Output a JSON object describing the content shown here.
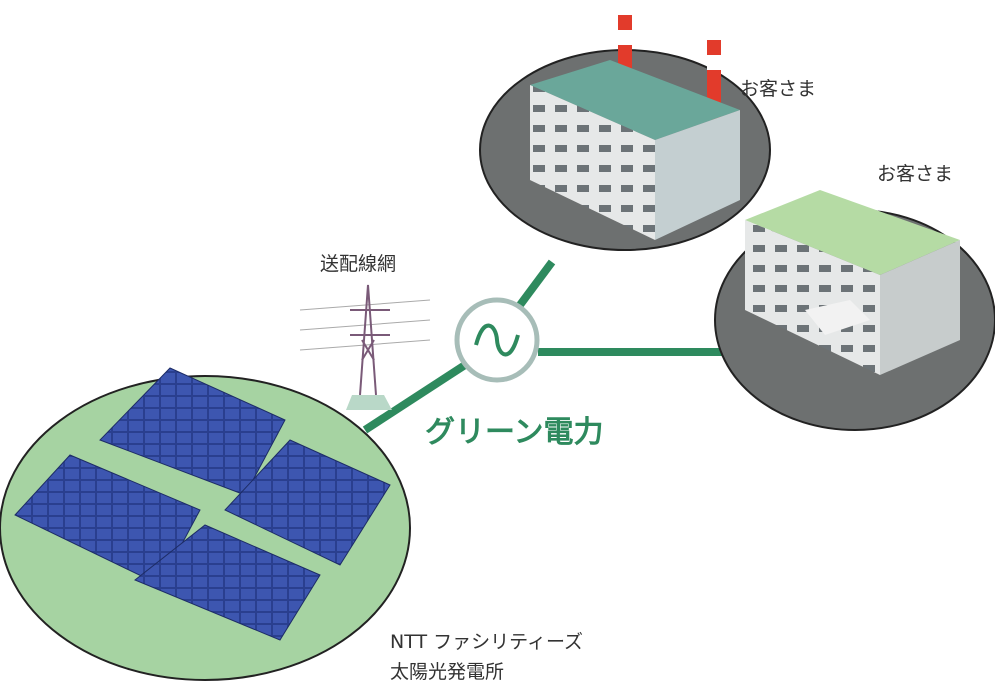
{
  "customers": [
    {
      "label": "お客さま"
    },
    {
      "label": "お客さま"
    }
  ],
  "grid": {
    "label": "送配線網"
  },
  "power": {
    "label": "グリーン電力"
  },
  "plant": {
    "lines": [
      "NTT ファシリティーズ",
      "太陽光発電所"
    ]
  }
}
